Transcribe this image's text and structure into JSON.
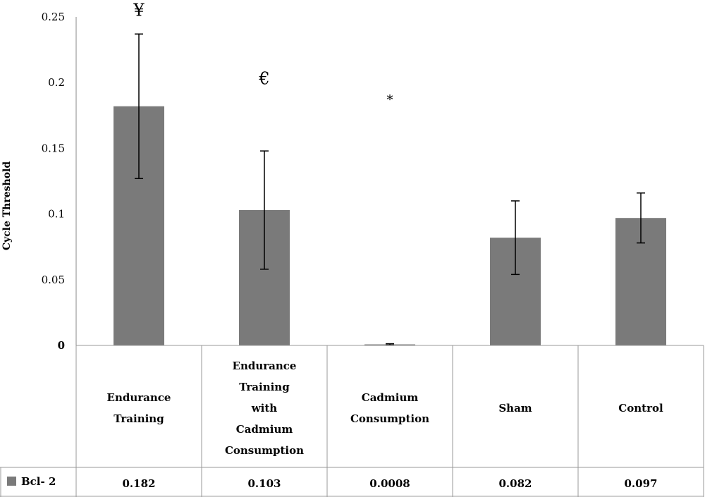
{
  "chart_data": {
    "type": "bar",
    "ylabel": "Cycle Threshold",
    "ylim": [
      0,
      0.25
    ],
    "yticks": [
      "0",
      "0.05",
      "0.1",
      "0.15",
      "0.2",
      "0.25"
    ],
    "ytick_values": [
      0,
      0.05,
      0.1,
      0.15,
      0.2,
      0.25
    ],
    "grid": false,
    "categories": [
      [
        "Endurance",
        "Training"
      ],
      [
        "Endurance",
        "Training",
        "with",
        "Cadmium",
        "Consumption"
      ],
      [
        "Cadmium",
        "Consumption"
      ],
      [
        "Sham"
      ],
      [
        "Control"
      ]
    ],
    "series": [
      {
        "name": "Bcl- 2",
        "color": "#7a7a7a",
        "values": [
          0.182,
          0.103,
          0.0008,
          0.082,
          0.097
        ],
        "value_labels": [
          "0.182",
          "0.103",
          "0.0008",
          "0.082",
          "0.097"
        ],
        "error_low": [
          0.127,
          0.058,
          0.0003,
          0.054,
          0.078
        ],
        "error_high": [
          0.237,
          0.148,
          0.0013,
          0.11,
          0.116
        ]
      }
    ],
    "annotations": [
      {
        "category_index": 0,
        "text": "¥",
        "y": 0.255
      },
      {
        "category_index": 1,
        "text": "€",
        "y": 0.203
      },
      {
        "category_index": 2,
        "text": "*",
        "y": 0.188
      }
    ]
  }
}
